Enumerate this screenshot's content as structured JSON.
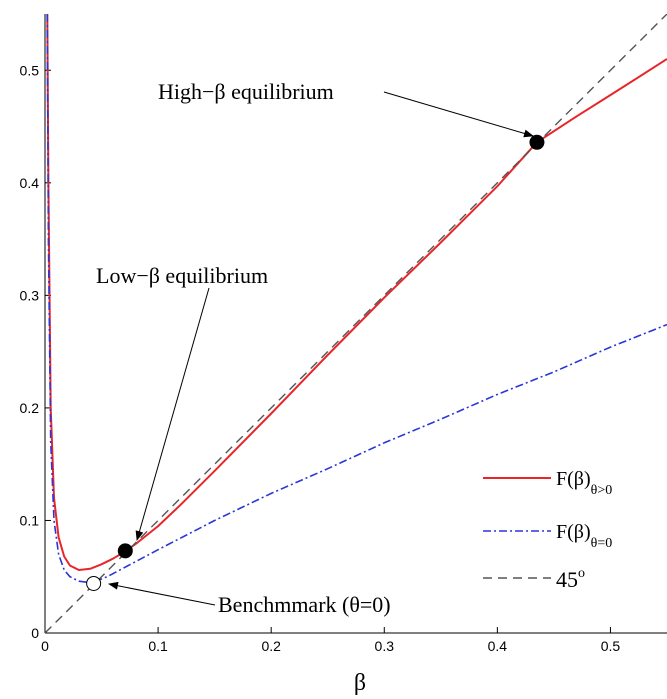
{
  "chart_data": {
    "type": "line",
    "title": "",
    "xlabel": "β",
    "ylabel": "",
    "xlim": [
      0,
      0.55
    ],
    "ylim": [
      0,
      0.55
    ],
    "xticks": [
      0,
      0.1,
      0.2,
      0.3,
      0.4,
      0.5
    ],
    "yticks": [
      0,
      0.1,
      0.2,
      0.3,
      0.4,
      0.5
    ],
    "xtick_labels": [
      "0",
      "0.1",
      "0.2",
      "0.3",
      "0.4",
      "0.5"
    ],
    "ytick_labels": [
      "0",
      "0.1",
      "0.2",
      "0.3",
      "0.4",
      "0.5"
    ],
    "grid": false,
    "legend_position": "bottom-right",
    "series": [
      {
        "name": "F(β)",
        "subscript": "θ>0",
        "color": "#e8262a",
        "style": "solid",
        "x": [
          0.002,
          0.003,
          0.005,
          0.008,
          0.012,
          0.017,
          0.022,
          0.03,
          0.04,
          0.05,
          0.06,
          0.07,
          0.08,
          0.1,
          0.12,
          0.15,
          0.2,
          0.25,
          0.3,
          0.35,
          0.4,
          0.435,
          0.47,
          0.5,
          0.55
        ],
        "y": [
          0.55,
          0.4,
          0.2,
          0.12,
          0.085,
          0.068,
          0.06,
          0.056,
          0.057,
          0.061,
          0.066,
          0.072,
          0.079,
          0.095,
          0.114,
          0.144,
          0.195,
          0.247,
          0.298,
          0.347,
          0.397,
          0.436,
          0.459,
          0.478,
          0.51
        ]
      },
      {
        "name": "F(β)",
        "subscript": "θ=0",
        "color": "#2a36d8",
        "style": "dashdot",
        "x": [
          0.002,
          0.003,
          0.005,
          0.008,
          0.012,
          0.017,
          0.022,
          0.03,
          0.038,
          0.045,
          0.055,
          0.07,
          0.1,
          0.15,
          0.2,
          0.25,
          0.3,
          0.35,
          0.4,
          0.45,
          0.5,
          0.55
        ],
        "y": [
          0.55,
          0.35,
          0.17,
          0.1,
          0.07,
          0.056,
          0.05,
          0.046,
          0.045,
          0.046,
          0.05,
          0.058,
          0.074,
          0.1,
          0.124,
          0.146,
          0.169,
          0.19,
          0.212,
          0.232,
          0.254,
          0.274
        ]
      },
      {
        "name": "45°",
        "color": "#555555",
        "style": "dashed",
        "x": [
          0,
          0.55
        ],
        "y": [
          0,
          0.55
        ]
      }
    ],
    "points": [
      {
        "x": 0.071,
        "y": 0.073,
        "fill": "black"
      },
      {
        "x": 0.435,
        "y": 0.436,
        "fill": "black"
      },
      {
        "x": 0.043,
        "y": 0.044,
        "fill": "white"
      }
    ],
    "annotations": [
      {
        "text": "High−β equilibrium",
        "x": 0.435,
        "y": 0.436
      },
      {
        "text": "Low−β equilibrium",
        "x": 0.071,
        "y": 0.073
      },
      {
        "text": "Benchmmark (θ=0)",
        "x": 0.043,
        "y": 0.044
      }
    ],
    "legend": [
      {
        "label": "F(β)",
        "subscript": "θ>0"
      },
      {
        "label": "F(β)",
        "subscript": "θ=0"
      },
      {
        "label": "45",
        "superscript": "o"
      }
    ]
  }
}
